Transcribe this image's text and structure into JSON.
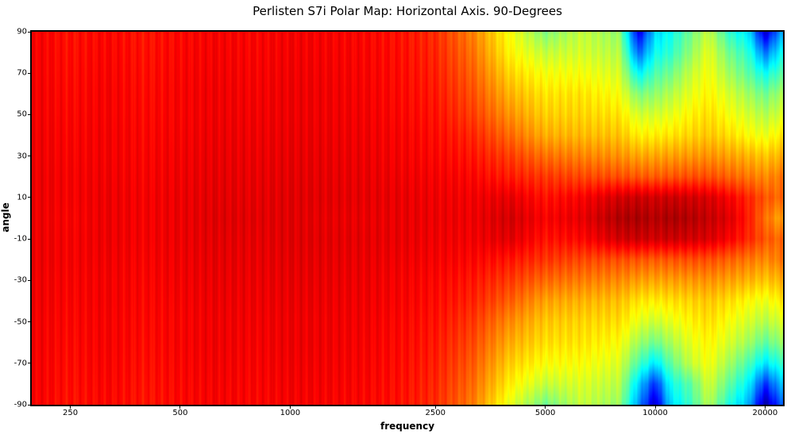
{
  "chart_data": {
    "type": "heatmap",
    "title": "Perlisten S7i Polar Map: Horizontal Axis. 90-Degrees",
    "xlabel": "frequency",
    "ylabel": "angle",
    "x_scale": "log",
    "x_range_hz": [
      196,
      22400
    ],
    "y_range_deg": [
      -90,
      90
    ],
    "colormap": "jet",
    "value_unit": "dB",
    "vmin": -30,
    "vmax": 0,
    "grid": false,
    "x_ticks": [
      {
        "value": 250,
        "label": "250"
      },
      {
        "value": 500,
        "label": "500"
      },
      {
        "value": 1000,
        "label": "1000"
      },
      {
        "value": 2500,
        "label": "2500"
      },
      {
        "value": 5000,
        "label": "5000"
      },
      {
        "value": 10000,
        "label": "10000"
      },
      {
        "value": 20000,
        "label": "20000"
      }
    ],
    "y_ticks": [
      {
        "value": 90,
        "label": "90"
      },
      {
        "value": 70,
        "label": "70"
      },
      {
        "value": 50,
        "label": "50"
      },
      {
        "value": 30,
        "label": "30"
      },
      {
        "value": 10,
        "label": "10"
      },
      {
        "value": -10,
        "label": "-10"
      },
      {
        "value": -30,
        "label": "-30"
      },
      {
        "value": -50,
        "label": "-50"
      },
      {
        "value": -70,
        "label": "-70"
      },
      {
        "value": -90,
        "label": "-90"
      }
    ],
    "frequencies_hz": [
      200,
      250,
      315,
      400,
      500,
      630,
      800,
      1000,
      1250,
      1600,
      2000,
      2500,
      3150,
      4000,
      5000,
      6300,
      8000,
      9000,
      10000,
      11000,
      12500,
      14000,
      16000,
      18000,
      20000,
      22000
    ],
    "angles_deg": [
      90,
      80,
      70,
      60,
      50,
      40,
      30,
      20,
      10,
      0,
      -10,
      -20,
      -30,
      -40,
      -50,
      -60,
      -70,
      -80,
      -90
    ],
    "values_db": [
      [
        -3.6,
        -4.2,
        -3.8,
        -4.3,
        -3.9,
        -3.6,
        -3.8,
        -3.5,
        -3.6,
        -3.8,
        -4.2,
        -5.0,
        -7.5,
        -11.5,
        -15.0,
        -13.0,
        -14.5,
        -27.0,
        -20.0,
        -18.5,
        -15.5,
        -13.0,
        -17.5,
        -19.5,
        -28.0,
        -22.0
      ],
      [
        -3.5,
        -4.1,
        -3.7,
        -4.2,
        -3.8,
        -3.5,
        -3.7,
        -3.4,
        -3.5,
        -3.7,
        -4.1,
        -4.8,
        -7.0,
        -11.0,
        -13.0,
        -12.5,
        -13.5,
        -23.5,
        -18.5,
        -17.5,
        -14.5,
        -12.0,
        -15.5,
        -17.5,
        -23.0,
        -19.0
      ],
      [
        -3.5,
        -4.0,
        -3.6,
        -4.1,
        -3.7,
        -3.4,
        -3.6,
        -3.3,
        -3.4,
        -3.6,
        -4.0,
        -4.6,
        -6.5,
        -10.0,
        -11.5,
        -11.5,
        -12.5,
        -19.0,
        -16.5,
        -15.5,
        -13.0,
        -11.5,
        -14.0,
        -16.0,
        -18.5,
        -16.5
      ],
      [
        -3.4,
        -3.9,
        -3.5,
        -4.0,
        -3.6,
        -3.3,
        -3.5,
        -3.2,
        -3.3,
        -3.5,
        -3.9,
        -4.4,
        -6.0,
        -9.0,
        -10.5,
        -10.5,
        -11.5,
        -15.0,
        -14.5,
        -13.5,
        -12.0,
        -11.0,
        -12.5,
        -14.0,
        -15.5,
        -14.0
      ],
      [
        -3.4,
        -3.8,
        -3.5,
        -3.9,
        -3.6,
        -3.3,
        -3.4,
        -3.2,
        -3.3,
        -3.4,
        -3.8,
        -4.2,
        -5.5,
        -8.0,
        -9.8,
        -10.0,
        -10.5,
        -12.5,
        -12.5,
        -12.0,
        -11.0,
        -10.3,
        -11.5,
        -12.5,
        -13.5,
        -12.5
      ],
      [
        -3.3,
        -3.7,
        -3.4,
        -3.8,
        -3.5,
        -3.2,
        -3.3,
        -3.1,
        -3.2,
        -3.3,
        -3.6,
        -4.0,
        -4.8,
        -6.8,
        -8.8,
        -9.2,
        -9.5,
        -10.8,
        -10.8,
        -10.5,
        -10.0,
        -9.6,
        -10.3,
        -11.2,
        -11.8,
        -10.8
      ],
      [
        -3.3,
        -3.6,
        -3.4,
        -3.7,
        -3.4,
        -3.1,
        -3.2,
        -3.0,
        -3.1,
        -3.2,
        -3.5,
        -3.8,
        -4.3,
        -5.5,
        -7.0,
        -7.6,
        -8.0,
        -8.6,
        -8.6,
        -8.4,
        -8.2,
        -8.0,
        -8.5,
        -9.0,
        -9.6,
        -9.0
      ],
      [
        -3.2,
        -3.5,
        -3.3,
        -3.6,
        -3.3,
        -3.0,
        -3.1,
        -2.9,
        -3.0,
        -3.1,
        -3.3,
        -3.5,
        -3.8,
        -4.5,
        -5.3,
        -5.8,
        -6.0,
        -6.3,
        -6.4,
        -6.2,
        -6.0,
        -6.0,
        -6.6,
        -7.2,
        -7.8,
        -7.3
      ],
      [
        -3.2,
        -3.5,
        -3.2,
        -3.5,
        -3.2,
        -2.9,
        -3.0,
        -2.8,
        -2.9,
        -3.0,
        -3.1,
        -3.3,
        -3.4,
        -3.0,
        -4.2,
        -3.6,
        -2.4,
        -2.2,
        -2.4,
        -2.2,
        -2.4,
        -2.6,
        -3.6,
        -4.8,
        -6.2,
        -6.8
      ],
      [
        -3.2,
        -3.6,
        -3.2,
        -3.5,
        -3.2,
        -2.8,
        -2.9,
        -2.8,
        -3.0,
        -3.1,
        -3.1,
        -3.2,
        -3.3,
        -2.4,
        -3.6,
        -3.0,
        -1.4,
        -1.2,
        -1.6,
        -1.2,
        -1.5,
        -2.0,
        -2.8,
        -4.5,
        -7.0,
        -8.5
      ],
      [
        -3.2,
        -3.5,
        -3.2,
        -3.5,
        -3.2,
        -2.9,
        -3.0,
        -2.8,
        -2.9,
        -3.0,
        -3.1,
        -3.3,
        -3.4,
        -2.8,
        -4.2,
        -3.8,
        -2.4,
        -2.2,
        -2.4,
        -2.2,
        -2.4,
        -2.6,
        -3.6,
        -4.8,
        -6.2,
        -6.8
      ],
      [
        -3.2,
        -3.5,
        -3.3,
        -3.6,
        -3.3,
        -3.0,
        -3.1,
        -2.9,
        -3.0,
        -3.1,
        -3.3,
        -3.5,
        -3.8,
        -4.3,
        -5.2,
        -5.8,
        -6.0,
        -6.2,
        -6.4,
        -6.2,
        -6.0,
        -6.0,
        -6.6,
        -7.2,
        -7.8,
        -7.3
      ],
      [
        -3.3,
        -3.6,
        -3.4,
        -3.7,
        -3.4,
        -3.1,
        -3.2,
        -3.0,
        -3.1,
        -3.2,
        -3.5,
        -3.8,
        -4.3,
        -5.4,
        -6.8,
        -7.4,
        -7.8,
        -8.4,
        -8.6,
        -8.4,
        -8.2,
        -8.0,
        -8.5,
        -9.0,
        -9.6,
        -9.0
      ],
      [
        -3.3,
        -3.7,
        -3.4,
        -3.8,
        -3.5,
        -3.2,
        -3.3,
        -3.1,
        -3.2,
        -3.3,
        -3.6,
        -4.0,
        -4.7,
        -6.5,
        -8.5,
        -9.0,
        -9.4,
        -10.5,
        -10.8,
        -10.4,
        -10.0,
        -9.6,
        -10.3,
        -11.2,
        -11.8,
        -10.8
      ],
      [
        -3.4,
        -3.8,
        -3.5,
        -3.9,
        -3.6,
        -3.3,
        -3.4,
        -3.2,
        -3.3,
        -3.4,
        -3.8,
        -4.2,
        -5.3,
        -7.8,
        -9.6,
        -10.0,
        -10.3,
        -12.0,
        -12.8,
        -12.0,
        -11.0,
        -10.3,
        -11.5,
        -12.5,
        -13.5,
        -12.5
      ],
      [
        -3.4,
        -3.9,
        -3.5,
        -4.0,
        -3.6,
        -3.3,
        -3.5,
        -3.2,
        -3.3,
        -3.5,
        -3.9,
        -4.4,
        -5.8,
        -8.8,
        -10.3,
        -10.5,
        -11.3,
        -14.0,
        -15.5,
        -13.8,
        -12.0,
        -11.0,
        -12.5,
        -14.0,
        -16.0,
        -14.5
      ],
      [
        -3.5,
        -4.0,
        -3.6,
        -4.1,
        -3.7,
        -3.4,
        -3.6,
        -3.3,
        -3.4,
        -3.6,
        -4.0,
        -4.6,
        -6.3,
        -9.8,
        -11.3,
        -11.3,
        -12.3,
        -16.5,
        -19.5,
        -16.0,
        -13.0,
        -11.5,
        -14.0,
        -16.5,
        -19.5,
        -17.5
      ],
      [
        -3.5,
        -4.1,
        -3.7,
        -4.2,
        -3.8,
        -3.5,
        -3.7,
        -3.4,
        -3.5,
        -3.7,
        -4.1,
        -4.8,
        -6.8,
        -10.8,
        -13.0,
        -12.3,
        -13.3,
        -20.0,
        -25.0,
        -18.5,
        -16.0,
        -12.5,
        -16.0,
        -19.0,
        -25.0,
        -21.0
      ],
      [
        -3.6,
        -4.2,
        -3.8,
        -4.3,
        -3.9,
        -3.6,
        -3.8,
        -3.5,
        -3.6,
        -3.8,
        -4.2,
        -5.0,
        -7.3,
        -12.0,
        -15.5,
        -13.0,
        -14.3,
        -22.0,
        -28.0,
        -20.0,
        -17.0,
        -13.5,
        -18.0,
        -21.0,
        -29.0,
        -24.0
      ]
    ]
  }
}
